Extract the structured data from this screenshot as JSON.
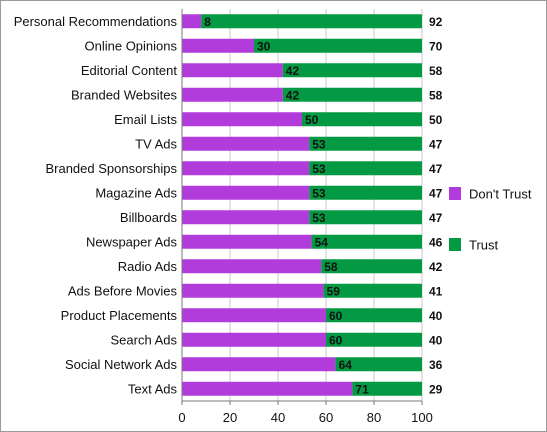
{
  "chart_data": {
    "type": "bar",
    "stacked": true,
    "orientation": "horizontal",
    "categories": [
      "Personal Recommendations",
      "Online Opinions",
      "Editorial Content",
      "Branded Websites",
      "Email Lists",
      "TV Ads",
      "Branded Sponsorships",
      "Magazine Ads",
      "Billboards",
      "Newspaper Ads",
      "Radio Ads",
      "Ads Before Movies",
      "Product Placements",
      "Search Ads",
      "Social Network Ads",
      "Text Ads"
    ],
    "series": [
      {
        "name": "Don't Trust",
        "color": "#b23bdb",
        "values": [
          8,
          30,
          42,
          42,
          50,
          53,
          53,
          53,
          53,
          54,
          58,
          59,
          60,
          60,
          64,
          71
        ]
      },
      {
        "name": "Trust",
        "color": "#049a43",
        "values": [
          92,
          70,
          58,
          58,
          50,
          47,
          47,
          47,
          47,
          46,
          42,
          41,
          40,
          40,
          36,
          29
        ]
      }
    ],
    "xlim": [
      0,
      100
    ],
    "xticks": [
      0,
      20,
      40,
      60,
      80,
      100
    ],
    "grid": true,
    "legend_position": "right"
  }
}
